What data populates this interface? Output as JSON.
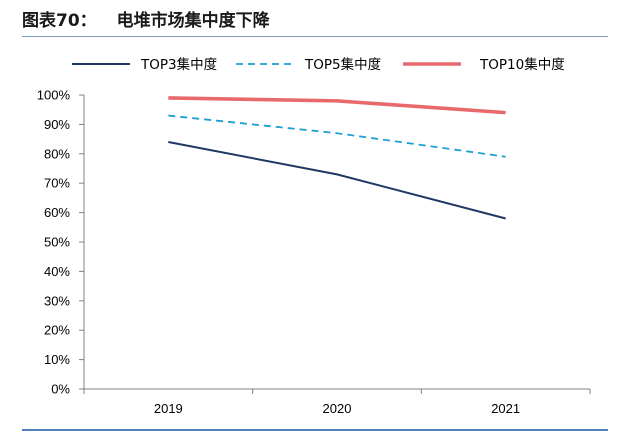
{
  "figure": {
    "label": "图表70：",
    "title": "电堆市场集中度下降"
  },
  "chart_data": {
    "type": "line",
    "title": "",
    "xlabel": "",
    "ylabel": "",
    "categories": [
      "2019",
      "2020",
      "2021"
    ],
    "ylim": [
      0,
      100
    ],
    "y_ticks": [
      "0%",
      "10%",
      "20%",
      "30%",
      "40%",
      "50%",
      "60%",
      "70%",
      "80%",
      "90%",
      "100%"
    ],
    "y_tick_values": [
      0,
      10,
      20,
      30,
      40,
      50,
      60,
      70,
      80,
      90,
      100
    ],
    "grid": false,
    "legend_position": "top",
    "series": [
      {
        "name": "TOP3集中度",
        "values": [
          84,
          73,
          58
        ],
        "color": "#1f3864",
        "style": "solid"
      },
      {
        "name": "TOP5集中度",
        "values": [
          93,
          87,
          79
        ],
        "color": "#1fa0d2",
        "style": "dashed"
      },
      {
        "name": "TOP10集中度",
        "values": [
          99,
          98,
          94
        ],
        "color": "#e8696b",
        "style": "solid-thick"
      }
    ]
  }
}
